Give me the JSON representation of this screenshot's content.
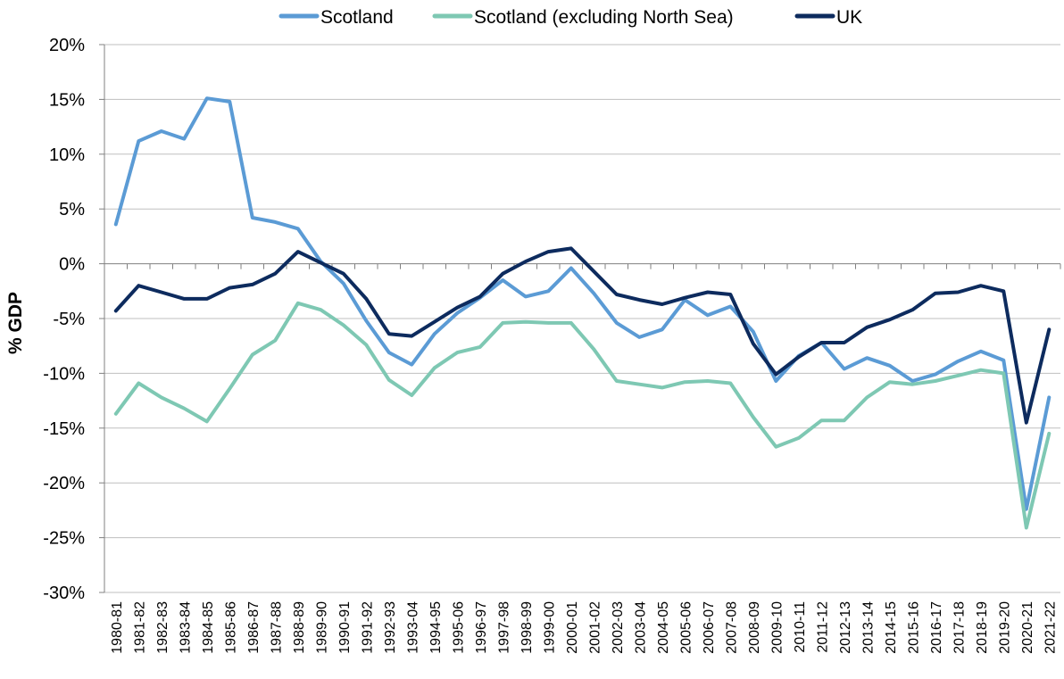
{
  "chart_data": {
    "type": "line",
    "ylabel": "% GDP",
    "xlabel": "",
    "ylim": [
      -30,
      20
    ],
    "y_ticks": [
      20,
      15,
      10,
      5,
      0,
      -5,
      -10,
      -15,
      -20,
      -25,
      -30
    ],
    "y_tick_labels": [
      "20%",
      "15%",
      "10%",
      "5%",
      "0%",
      "-5%",
      "-10%",
      "-15%",
      "-20%",
      "-25%",
      "-30%"
    ],
    "grid": "horizontal",
    "legend_position": "top",
    "categories": [
      "1980-81",
      "1981-82",
      "1982-83",
      "1983-84",
      "1984-85",
      "1985-86",
      "1986-87",
      "1987-88",
      "1988-89",
      "1989-90",
      "1990-91",
      "1991-92",
      "1992-93",
      "1993-04",
      "1994-95",
      "1995-06",
      "1996-97",
      "1997-98",
      "1998-99",
      "1999-00",
      "2000-01",
      "2001-02",
      "2002-03",
      "2003-04",
      "2004-05",
      "2005-06",
      "2006-07",
      "2007-08",
      "2008-09",
      "2009-10",
      "2010-11",
      "2011-12",
      "2012-13",
      "2013-14",
      "2014-15",
      "2015-16",
      "2016-17",
      "2017-18",
      "2018-19",
      "2019-20",
      "2020-21",
      "2021-22"
    ],
    "series": [
      {
        "name": "Scotland",
        "color": "#5b9bd5",
        "values": [
          3.6,
          11.2,
          12.1,
          11.4,
          15.1,
          14.8,
          4.2,
          3.8,
          3.2,
          0.2,
          -1.8,
          -5.2,
          -8.1,
          -9.2,
          -6.4,
          -4.5,
          -3.1,
          -1.5,
          -3.0,
          -2.5,
          -0.4,
          -2.7,
          -5.4,
          -6.7,
          -6.0,
          -3.3,
          -4.7,
          -3.9,
          -6.2,
          -10.7,
          -8.4,
          -7.2,
          -9.6,
          -8.6,
          -9.3,
          -10.7,
          -10.1,
          -8.9,
          -8.0,
          -8.8,
          -22.4,
          -12.2
        ]
      },
      {
        "name": "Scotland (excluding North Sea)",
        "color": "#7ec8b3",
        "values": [
          -13.7,
          -10.9,
          -12.2,
          -13.2,
          -14.4,
          -11.4,
          -8.3,
          -7.0,
          -3.6,
          -4.2,
          -5.6,
          -7.4,
          -10.6,
          -12.0,
          -9.5,
          -8.1,
          -7.6,
          -5.4,
          -5.3,
          -5.4,
          -5.4,
          -7.8,
          -10.7,
          -11.0,
          -11.3,
          -10.8,
          -10.7,
          -10.9,
          -14.0,
          -16.7,
          -15.9,
          -14.3,
          -14.3,
          -12.2,
          -10.8,
          -11.0,
          -10.7,
          -10.2,
          -9.7,
          -10.0,
          -24.1,
          -15.5
        ]
      },
      {
        "name": "UK",
        "color": "#0d2b5e",
        "values": [
          -4.3,
          -2.0,
          -2.6,
          -3.2,
          -3.2,
          -2.2,
          -1.9,
          -0.9,
          1.1,
          0.1,
          -0.9,
          -3.2,
          -6.4,
          -6.6,
          -5.3,
          -4.0,
          -3.0,
          -0.9,
          0.2,
          1.1,
          1.4,
          -0.7,
          -2.8,
          -3.3,
          -3.7,
          -3.1,
          -2.6,
          -2.8,
          -7.3,
          -10.1,
          -8.5,
          -7.2,
          -7.2,
          -5.8,
          -5.1,
          -4.2,
          -2.7,
          -2.6,
          -2.0,
          -2.5,
          -14.5,
          -6.0
        ]
      }
    ]
  }
}
